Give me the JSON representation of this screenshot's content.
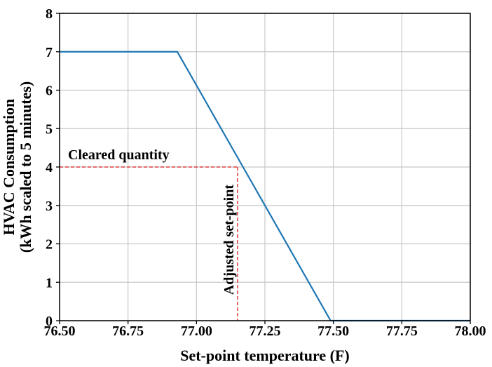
{
  "chart_data": {
    "type": "line",
    "title": "",
    "xlabel": "Set-point temperature (F)",
    "ylabel_lines": [
      "HVAC Consumption",
      "(kWh scaled to 5 minutes)"
    ],
    "xlim": [
      76.5,
      78.0
    ],
    "ylim": [
      0,
      8
    ],
    "x_ticks": [
      76.5,
      76.75,
      77.0,
      77.25,
      77.5,
      77.75,
      78.0
    ],
    "x_tick_labels": [
      "76.50",
      "76.75",
      "77.00",
      "77.25",
      "77.50",
      "77.75",
      "78.00"
    ],
    "y_ticks": [
      0,
      1,
      2,
      3,
      4,
      5,
      6,
      7,
      8
    ],
    "y_tick_labels": [
      "0",
      "1",
      "2",
      "3",
      "4",
      "5",
      "6",
      "7",
      "8"
    ],
    "grid": true,
    "series": [
      {
        "color": "#1f77b4",
        "x": [
          76.5,
          76.93,
          77.49,
          78.0
        ],
        "y": [
          7,
          7,
          0,
          0
        ]
      }
    ],
    "annotations": {
      "cleared_quantity": {
        "label": "Cleared quantity",
        "value": 4,
        "color": "#e41a1c"
      },
      "adjusted_setpoint": {
        "label": "Adjusted set-point",
        "value": 77.15,
        "color": "#e41a1c"
      }
    }
  }
}
